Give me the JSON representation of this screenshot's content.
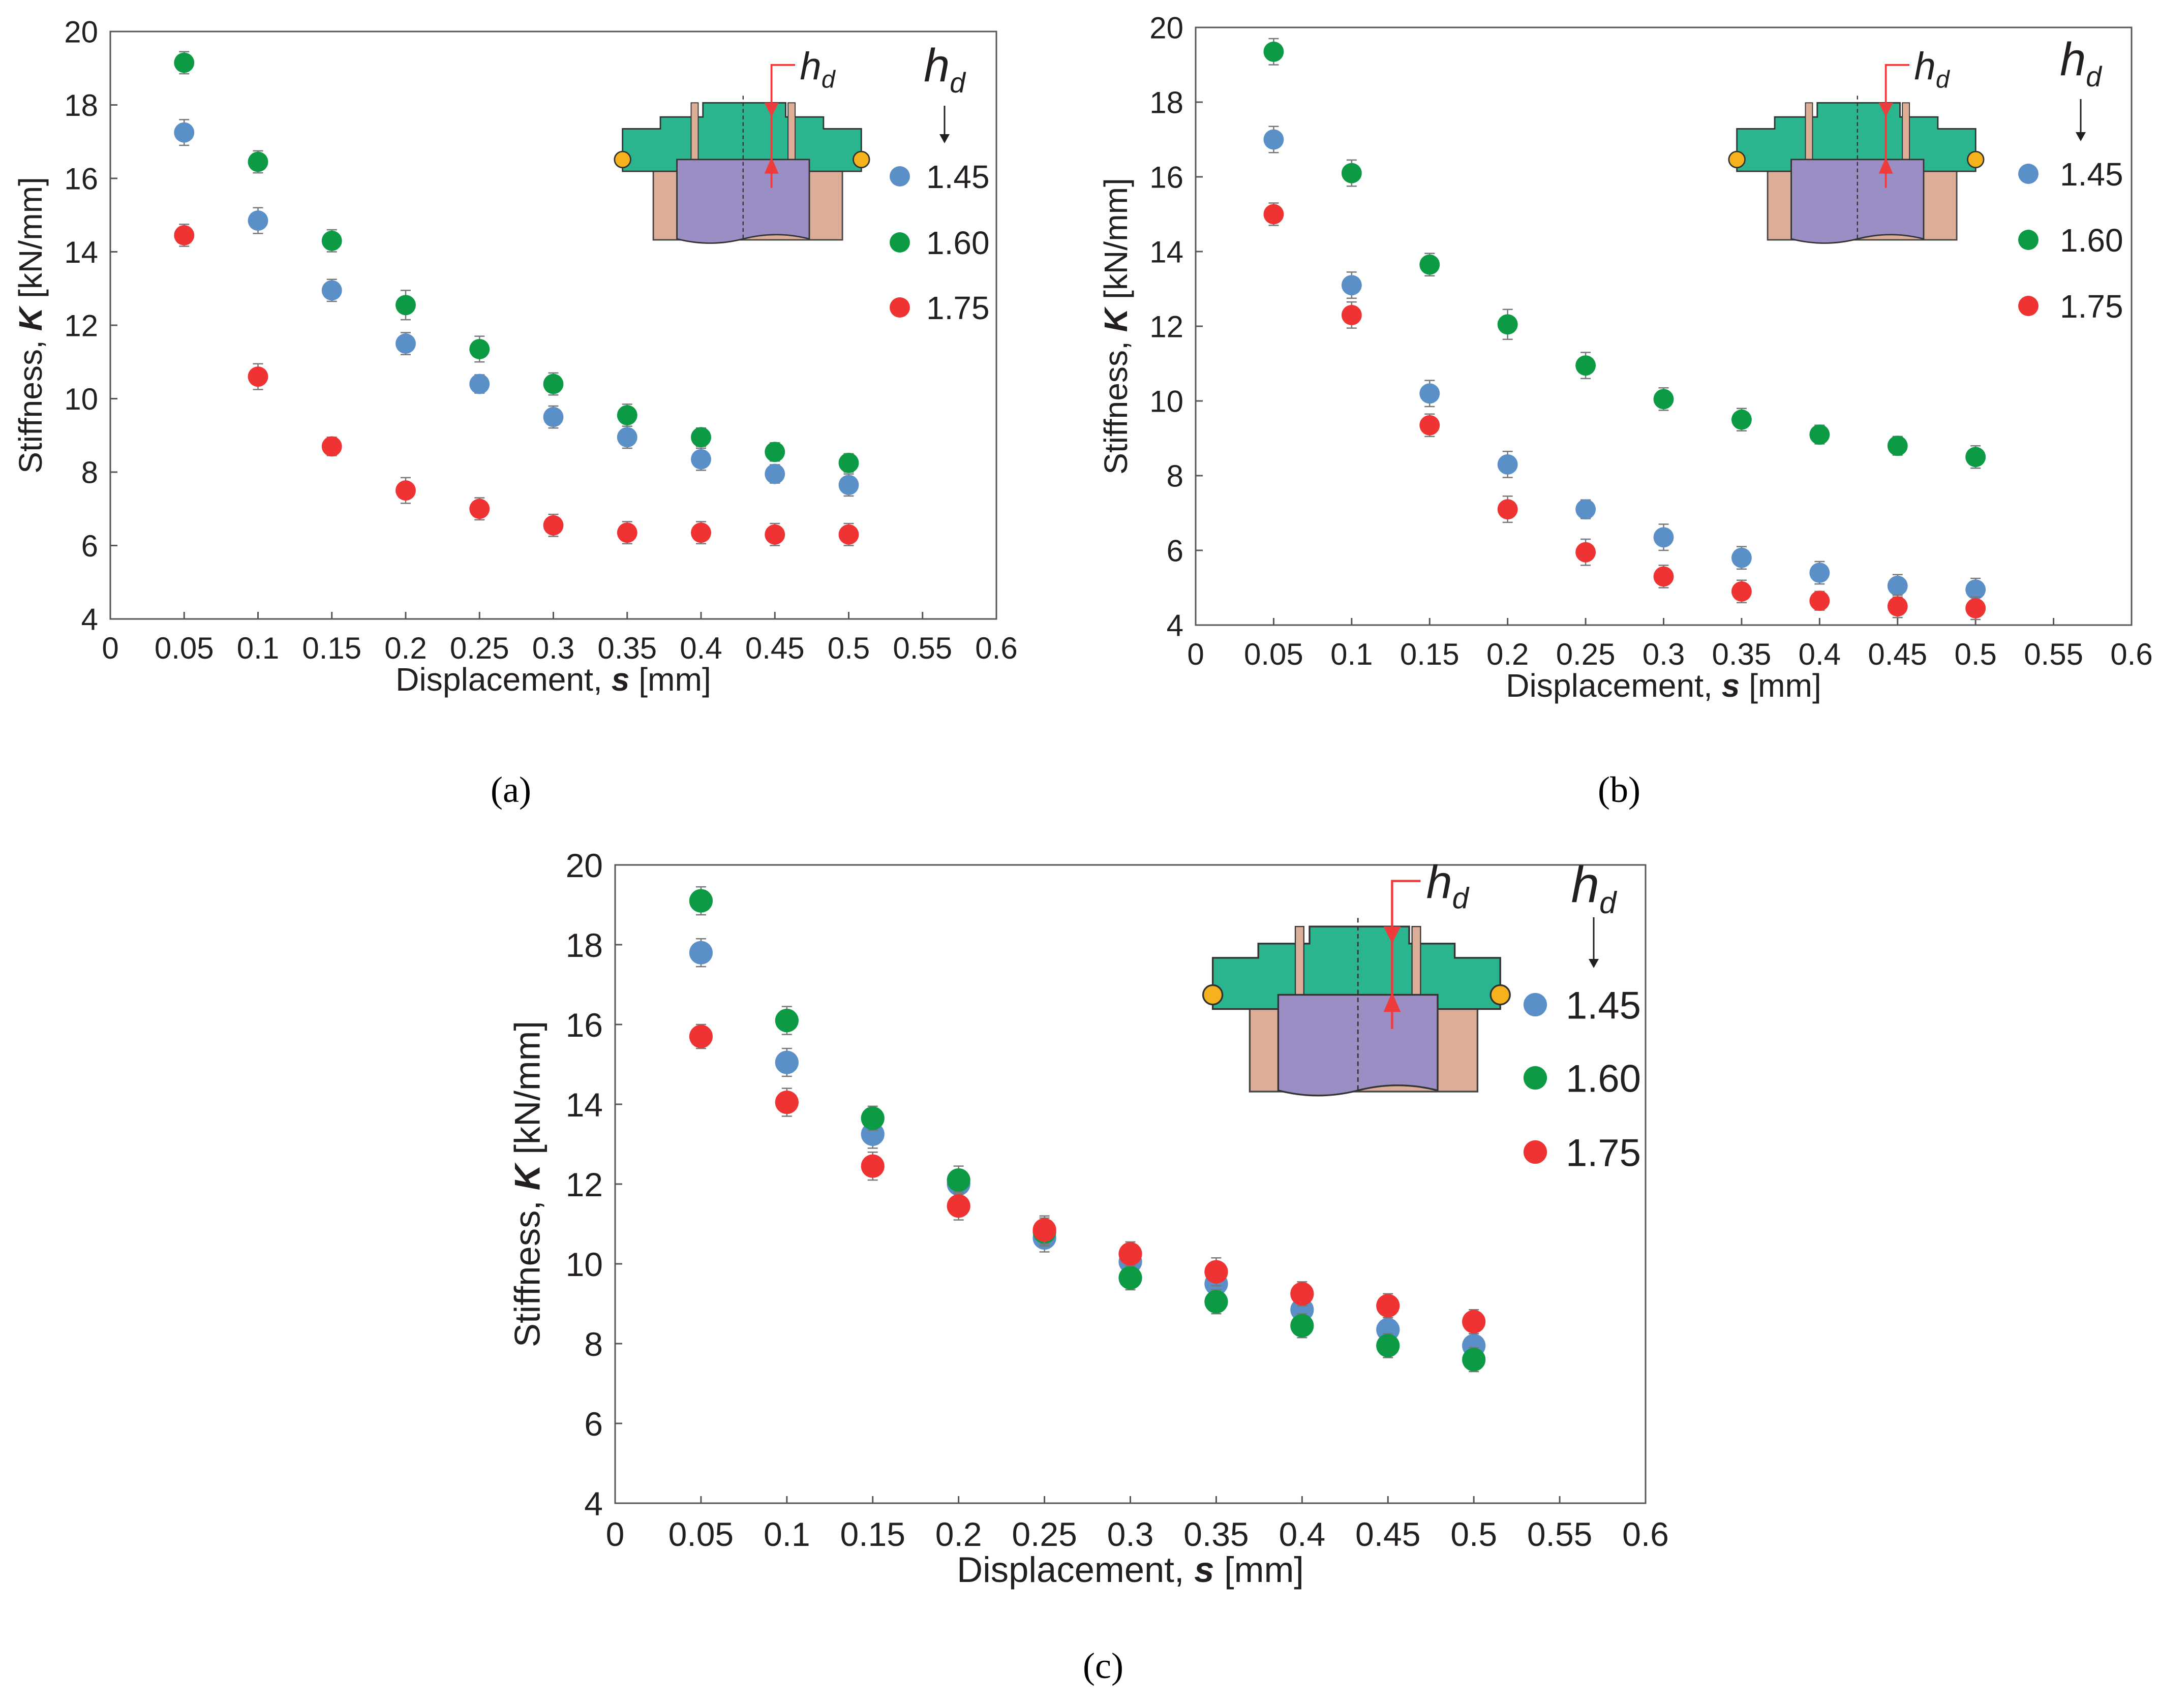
{
  "colors": {
    "s145": "#5b8fc7",
    "s160": "#0c9a44",
    "s175": "#ef3333",
    "axis": "#555555",
    "errbar": "#777777",
    "inset_green": "#2bb58e",
    "inset_purple": "#9b8ec4",
    "inset_pink": "#dcae98",
    "inset_oring": "#f5b21c",
    "inset_arrow": "#ef3b3b"
  },
  "inset": {
    "arrow_label": "h",
    "arrow_label_sub": "d"
  },
  "legend": {
    "title": "h",
    "title_sub": "d"
  },
  "chart_data": [
    {
      "type": "scatter",
      "panel": "a",
      "caption": "(a)",
      "xlabel_prefix": "Displacement, ",
      "xlabel_var": "s",
      "xlabel_unit": " [mm]",
      "ylabel_prefix": "Stiffness, ",
      "ylabel_var": "K",
      "ylabel_unit": " [kN/mm]",
      "xlim": [
        0,
        0.6
      ],
      "ylim": [
        4,
        20
      ],
      "xticks": [
        "0",
        "0.05",
        "0.1",
        "0.15",
        "0.2",
        "0.25",
        "0.3",
        "0.35",
        "0.4",
        "0.45",
        "0.5",
        "0.55",
        "0.6"
      ],
      "yticks": [
        "4",
        "6",
        "8",
        "10",
        "12",
        "14",
        "16",
        "18",
        "20"
      ],
      "grid": false,
      "legend_position": "top-right",
      "x": [
        0.05,
        0.1,
        0.15,
        0.2,
        0.25,
        0.3,
        0.35,
        0.4,
        0.45,
        0.5
      ],
      "series": [
        {
          "name": "1.45",
          "color_key": "s145",
          "values": [
            17.25,
            14.85,
            12.95,
            11.5,
            10.4,
            9.5,
            8.95,
            8.35,
            7.95,
            7.65
          ],
          "err": [
            0.35,
            0.35,
            0.3,
            0.3,
            0.25,
            0.3,
            0.3,
            0.3,
            0.25,
            0.3
          ]
        },
        {
          "name": "1.60",
          "color_key": "s160",
          "values": [
            19.15,
            16.45,
            14.3,
            12.55,
            11.35,
            10.4,
            9.55,
            8.95,
            8.55,
            8.25
          ],
          "err": [
            0.3,
            0.3,
            0.3,
            0.4,
            0.35,
            0.3,
            0.3,
            0.25,
            0.25,
            0.25
          ]
        },
        {
          "name": "1.75",
          "color_key": "s175",
          "values": [
            14.45,
            10.6,
            8.7,
            7.5,
            7.0,
            6.55,
            6.35,
            6.35,
            6.3,
            6.3
          ],
          "err": [
            0.3,
            0.35,
            0.25,
            0.35,
            0.3,
            0.3,
            0.3,
            0.3,
            0.3,
            0.3
          ]
        }
      ]
    },
    {
      "type": "scatter",
      "panel": "b",
      "caption": "(b)",
      "xlabel_prefix": "Displacement, ",
      "xlabel_var": "s",
      "xlabel_unit": " [mm]",
      "ylabel_prefix": "Stiffness, ",
      "ylabel_var": "K",
      "ylabel_unit": " [kN/mm]",
      "xlim": [
        0,
        0.6
      ],
      "ylim": [
        4,
        20
      ],
      "xticks": [
        "0",
        "0.05",
        "0.1",
        "0.15",
        "0.2",
        "0.25",
        "0.3",
        "0.35",
        "0.4",
        "0.45",
        "0.5",
        "0.55",
        "0.6"
      ],
      "yticks": [
        "4",
        "6",
        "8",
        "10",
        "12",
        "14",
        "16",
        "18",
        "20"
      ],
      "grid": false,
      "legend_position": "top-right",
      "x": [
        0.05,
        0.1,
        0.15,
        0.2,
        0.25,
        0.3,
        0.35,
        0.4,
        0.45,
        0.5
      ],
      "series": [
        {
          "name": "1.45",
          "color_key": "s145",
          "values": [
            17.0,
            13.1,
            10.2,
            8.3,
            7.1,
            6.35,
            5.8,
            5.4,
            5.05,
            4.95
          ],
          "err": [
            0.35,
            0.35,
            0.35,
            0.35,
            0.25,
            0.35,
            0.3,
            0.3,
            0.3,
            0.3
          ]
        },
        {
          "name": "1.60",
          "color_key": "s160",
          "values": [
            19.35,
            16.1,
            13.65,
            12.05,
            10.95,
            10.05,
            9.5,
            9.1,
            8.8,
            8.5
          ],
          "err": [
            0.35,
            0.35,
            0.3,
            0.4,
            0.35,
            0.3,
            0.3,
            0.25,
            0.25,
            0.3
          ]
        },
        {
          "name": "1.75",
          "color_key": "s175",
          "values": [
            15.0,
            12.3,
            9.35,
            7.1,
            5.95,
            5.3,
            4.9,
            4.65,
            4.5,
            4.45
          ],
          "err": [
            0.3,
            0.35,
            0.3,
            0.35,
            0.35,
            0.3,
            0.3,
            0.25,
            0.3,
            0.3
          ]
        }
      ]
    },
    {
      "type": "scatter",
      "panel": "c",
      "caption": "(c)",
      "xlabel_prefix": "Displacement, ",
      "xlabel_var": "s",
      "xlabel_unit": " [mm]",
      "ylabel_prefix": "Stiffness, ",
      "ylabel_var": "K",
      "ylabel_unit": " [kN/mm]",
      "xlim": [
        0,
        0.6
      ],
      "ylim": [
        4,
        20
      ],
      "xticks": [
        "0",
        "0.05",
        "0.1",
        "0.15",
        "0.2",
        "0.25",
        "0.3",
        "0.35",
        "0.4",
        "0.45",
        "0.5",
        "0.55",
        "0.6"
      ],
      "yticks": [
        "4",
        "6",
        "8",
        "10",
        "12",
        "14",
        "16",
        "18",
        "20"
      ],
      "grid": false,
      "legend_position": "top-right",
      "x": [
        0.05,
        0.1,
        0.15,
        0.2,
        0.25,
        0.3,
        0.35,
        0.4,
        0.45,
        0.5
      ],
      "series": [
        {
          "name": "1.45",
          "color_key": "s145",
          "values": [
            17.8,
            15.05,
            13.25,
            12.0,
            10.65,
            10.05,
            9.5,
            8.85,
            8.35,
            7.95
          ],
          "err": [
            0.35,
            0.35,
            0.35,
            0.35,
            0.35,
            0.3,
            0.3,
            0.3,
            0.3,
            0.3
          ]
        },
        {
          "name": "1.60",
          "color_key": "s160",
          "values": [
            19.1,
            16.1,
            13.65,
            12.1,
            10.8,
            9.65,
            9.05,
            8.45,
            7.95,
            7.6
          ],
          "err": [
            0.35,
            0.35,
            0.3,
            0.35,
            0.35,
            0.3,
            0.3,
            0.3,
            0.3,
            0.3
          ]
        },
        {
          "name": "1.75",
          "color_key": "s175",
          "values": [
            15.7,
            14.05,
            12.45,
            11.45,
            10.85,
            10.25,
            9.8,
            9.25,
            8.95,
            8.55
          ],
          "err": [
            0.3,
            0.35,
            0.35,
            0.35,
            0.35,
            0.3,
            0.35,
            0.3,
            0.3,
            0.3
          ]
        }
      ]
    }
  ]
}
